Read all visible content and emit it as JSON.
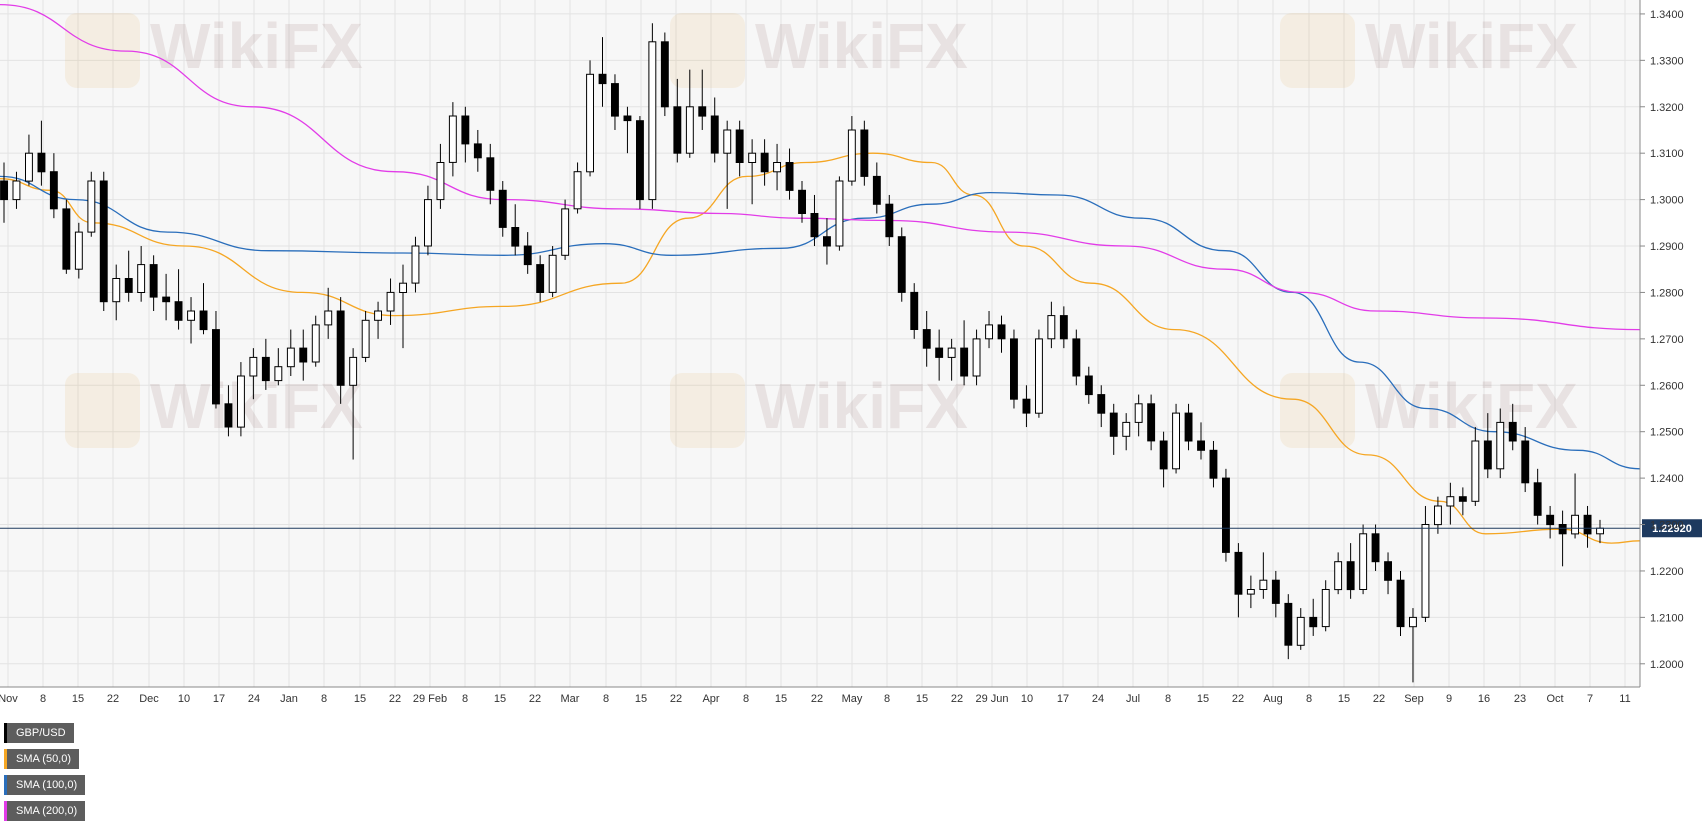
{
  "chart_data": {
    "type": "candlestick",
    "symbol": "GBP/USD",
    "ylim": [
      1.195,
      1.343
    ],
    "y_ticks": [
      "1.3400",
      "1.3300",
      "1.3200",
      "1.3100",
      "1.3000",
      "1.2900",
      "1.2800",
      "1.2700",
      "1.2600",
      "1.2500",
      "1.2400",
      "1.2300",
      "1.2200",
      "1.2100",
      "1.2000"
    ],
    "x_ticks": [
      "Nov",
      "8",
      "15",
      "22",
      "Dec",
      "10",
      "17",
      "24",
      "Jan",
      "8",
      "15",
      "22",
      "29 Feb",
      "8",
      "15",
      "22",
      "Mar",
      "8",
      "15",
      "22",
      "Apr",
      "8",
      "15",
      "22",
      "May",
      "8",
      "15",
      "22",
      "29 Jun",
      "10",
      "17",
      "24",
      "Jul",
      "8",
      "15",
      "22",
      "Aug",
      "8",
      "15",
      "22",
      "Sep",
      "9",
      "16",
      "23",
      "Oct",
      "7",
      "11"
    ],
    "last_price": "1.22920",
    "last_price_value": 1.2292,
    "grid": true,
    "legend_position": "top-left",
    "sma_series": [
      {
        "name": "SMA (50,0)",
        "color": "#f5a623",
        "anchors": [
          [
            1.3045,
            0
          ],
          [
            1.302,
            30
          ],
          [
            1.295,
            55
          ],
          [
            1.29,
            110
          ],
          [
            1.28,
            180
          ],
          [
            1.275,
            235
          ],
          [
            1.277,
            300
          ],
          [
            1.282,
            370
          ],
          [
            1.296,
            410
          ],
          [
            1.305,
            445
          ],
          [
            1.308,
            480
          ],
          [
            1.31,
            520
          ],
          [
            1.308,
            555
          ],
          [
            1.301,
            580
          ],
          [
            1.29,
            610
          ],
          [
            1.282,
            650
          ],
          [
            1.272,
            700
          ],
          [
            1.257,
            770
          ],
          [
            1.245,
            815
          ],
          [
            1.235,
            858
          ],
          [
            1.228,
            885
          ],
          [
            1.229,
            930
          ],
          [
            1.226,
            960
          ],
          [
            1.2265,
            977
          ]
        ]
      },
      {
        "name": "SMA (100,0)",
        "color": "#2a6ebb",
        "anchors": [
          [
            1.305,
            0
          ],
          [
            1.3,
            45
          ],
          [
            1.293,
            100
          ],
          [
            1.289,
            160
          ],
          [
            1.2885,
            240
          ],
          [
            1.288,
            300
          ],
          [
            1.2905,
            360
          ],
          [
            1.288,
            400
          ],
          [
            1.2895,
            465
          ],
          [
            1.296,
            515
          ],
          [
            1.299,
            555
          ],
          [
            1.3015,
            590
          ],
          [
            1.301,
            630
          ],
          [
            1.296,
            680
          ],
          [
            1.289,
            730
          ],
          [
            1.28,
            770
          ],
          [
            1.265,
            810
          ],
          [
            1.255,
            850
          ],
          [
            1.25,
            890
          ],
          [
            1.246,
            940
          ],
          [
            1.242,
            977
          ]
        ]
      },
      {
        "name": "SMA (200,0)",
        "color": "#e23ce8",
        "anchors": [
          [
            1.342,
            0
          ],
          [
            1.332,
            75
          ],
          [
            1.32,
            150
          ],
          [
            1.306,
            235
          ],
          [
            1.3,
            300
          ],
          [
            1.298,
            370
          ],
          [
            1.297,
            430
          ],
          [
            1.296,
            475
          ],
          [
            1.2955,
            530
          ],
          [
            1.293,
            600
          ],
          [
            1.29,
            670
          ],
          [
            1.285,
            730
          ],
          [
            1.28,
            775
          ],
          [
            1.276,
            820
          ],
          [
            1.2745,
            885
          ],
          [
            1.272,
            977
          ]
        ]
      }
    ],
    "ohlc": [
      [
        1.304,
        1.308,
        1.295,
        1.3
      ],
      [
        1.3,
        1.306,
        1.298,
        1.304
      ],
      [
        1.304,
        1.314,
        1.303,
        1.31
      ],
      [
        1.31,
        1.317,
        1.303,
        1.306
      ],
      [
        1.306,
        1.31,
        1.296,
        1.298
      ],
      [
        1.298,
        1.3,
        1.284,
        1.285
      ],
      [
        1.285,
        1.295,
        1.283,
        1.293
      ],
      [
        1.293,
        1.306,
        1.292,
        1.304
      ],
      [
        1.304,
        1.306,
        1.276,
        1.278
      ],
      [
        1.278,
        1.286,
        1.274,
        1.283
      ],
      [
        1.283,
        1.289,
        1.278,
        1.28
      ],
      [
        1.28,
        1.29,
        1.278,
        1.286
      ],
      [
        1.286,
        1.288,
        1.276,
        1.279
      ],
      [
        1.279,
        1.284,
        1.274,
        1.278
      ],
      [
        1.278,
        1.285,
        1.272,
        1.274
      ],
      [
        1.274,
        1.279,
        1.269,
        1.276
      ],
      [
        1.276,
        1.282,
        1.271,
        1.272
      ],
      [
        1.272,
        1.276,
        1.255,
        1.256
      ],
      [
        1.256,
        1.26,
        1.249,
        1.251
      ],
      [
        1.251,
        1.265,
        1.249,
        1.262
      ],
      [
        1.262,
        1.268,
        1.257,
        1.266
      ],
      [
        1.266,
        1.27,
        1.259,
        1.261
      ],
      [
        1.261,
        1.268,
        1.26,
        1.264
      ],
      [
        1.264,
        1.272,
        1.262,
        1.268
      ],
      [
        1.268,
        1.272,
        1.261,
        1.265
      ],
      [
        1.265,
        1.275,
        1.264,
        1.273
      ],
      [
        1.273,
        1.281,
        1.27,
        1.276
      ],
      [
        1.276,
        1.279,
        1.256,
        1.26
      ],
      [
        1.26,
        1.268,
        1.244,
        1.266
      ],
      [
        1.266,
        1.276,
        1.265,
        1.274
      ],
      [
        1.274,
        1.278,
        1.27,
        1.276
      ],
      [
        1.276,
        1.283,
        1.273,
        1.28
      ],
      [
        1.28,
        1.286,
        1.268,
        1.282
      ],
      [
        1.282,
        1.292,
        1.28,
        1.29
      ],
      [
        1.29,
        1.303,
        1.288,
        1.3
      ],
      [
        1.3,
        1.312,
        1.298,
        1.308
      ],
      [
        1.308,
        1.321,
        1.305,
        1.318
      ],
      [
        1.318,
        1.32,
        1.308,
        1.312
      ],
      [
        1.312,
        1.315,
        1.306,
        1.309
      ],
      [
        1.309,
        1.312,
        1.299,
        1.302
      ],
      [
        1.302,
        1.304,
        1.292,
        1.294
      ],
      [
        1.294,
        1.299,
        1.288,
        1.29
      ],
      [
        1.29,
        1.293,
        1.284,
        1.286
      ],
      [
        1.286,
        1.288,
        1.278,
        1.28
      ],
      [
        1.28,
        1.29,
        1.279,
        1.288
      ],
      [
        1.288,
        1.3,
        1.287,
        1.298
      ],
      [
        1.298,
        1.308,
        1.297,
        1.306
      ],
      [
        1.306,
        1.33,
        1.305,
        1.327
      ],
      [
        1.327,
        1.335,
        1.32,
        1.325
      ],
      [
        1.325,
        1.327,
        1.315,
        1.318
      ],
      [
        1.318,
        1.32,
        1.31,
        1.317
      ],
      [
        1.317,
        1.318,
        1.298,
        1.3
      ],
      [
        1.3,
        1.338,
        1.298,
        1.334
      ],
      [
        1.334,
        1.336,
        1.318,
        1.32
      ],
      [
        1.32,
        1.326,
        1.308,
        1.31
      ],
      [
        1.31,
        1.328,
        1.309,
        1.32
      ],
      [
        1.32,
        1.328,
        1.315,
        1.318
      ],
      [
        1.318,
        1.322,
        1.308,
        1.31
      ],
      [
        1.31,
        1.317,
        1.298,
        1.315
      ],
      [
        1.315,
        1.317,
        1.305,
        1.308
      ],
      [
        1.308,
        1.313,
        1.299,
        1.31
      ],
      [
        1.31,
        1.313,
        1.303,
        1.306
      ],
      [
        1.306,
        1.312,
        1.302,
        1.308
      ],
      [
        1.308,
        1.311,
        1.3,
        1.302
      ],
      [
        1.302,
        1.304,
        1.295,
        1.297
      ],
      [
        1.297,
        1.301,
        1.29,
        1.292
      ],
      [
        1.292,
        1.296,
        1.286,
        1.29
      ],
      [
        1.29,
        1.305,
        1.289,
        1.304
      ],
      [
        1.304,
        1.318,
        1.303,
        1.315
      ],
      [
        1.315,
        1.317,
        1.303,
        1.305
      ],
      [
        1.305,
        1.308,
        1.297,
        1.299
      ],
      [
        1.299,
        1.301,
        1.29,
        1.292
      ],
      [
        1.292,
        1.294,
        1.278,
        1.28
      ],
      [
        1.28,
        1.282,
        1.27,
        1.272
      ],
      [
        1.272,
        1.276,
        1.264,
        1.268
      ],
      [
        1.268,
        1.272,
        1.261,
        1.266
      ],
      [
        1.266,
        1.27,
        1.261,
        1.268
      ],
      [
        1.268,
        1.274,
        1.26,
        1.262
      ],
      [
        1.262,
        1.272,
        1.26,
        1.27
      ],
      [
        1.27,
        1.276,
        1.268,
        1.273
      ],
      [
        1.273,
        1.275,
        1.267,
        1.27
      ],
      [
        1.27,
        1.272,
        1.255,
        1.257
      ],
      [
        1.257,
        1.26,
        1.251,
        1.254
      ],
      [
        1.254,
        1.272,
        1.253,
        1.27
      ],
      [
        1.27,
        1.278,
        1.268,
        1.275
      ],
      [
        1.275,
        1.277,
        1.268,
        1.27
      ],
      [
        1.27,
        1.272,
        1.26,
        1.262
      ],
      [
        1.262,
        1.264,
        1.256,
        1.258
      ],
      [
        1.258,
        1.26,
        1.251,
        1.254
      ],
      [
        1.254,
        1.256,
        1.245,
        1.249
      ],
      [
        1.249,
        1.254,
        1.246,
        1.252
      ],
      [
        1.252,
        1.258,
        1.249,
        1.256
      ],
      [
        1.256,
        1.258,
        1.246,
        1.248
      ],
      [
        1.248,
        1.25,
        1.238,
        1.242
      ],
      [
        1.242,
        1.256,
        1.241,
        1.254
      ],
      [
        1.254,
        1.256,
        1.246,
        1.248
      ],
      [
        1.248,
        1.252,
        1.244,
        1.246
      ],
      [
        1.246,
        1.248,
        1.238,
        1.24
      ],
      [
        1.24,
        1.242,
        1.222,
        1.224
      ],
      [
        1.224,
        1.226,
        1.21,
        1.215
      ],
      [
        1.215,
        1.219,
        1.212,
        1.216
      ],
      [
        1.216,
        1.224,
        1.214,
        1.218
      ],
      [
        1.218,
        1.22,
        1.21,
        1.213
      ],
      [
        1.213,
        1.215,
        1.201,
        1.204
      ],
      [
        1.204,
        1.212,
        1.203,
        1.21
      ],
      [
        1.21,
        1.214,
        1.206,
        1.208
      ],
      [
        1.208,
        1.218,
        1.207,
        1.216
      ],
      [
        1.216,
        1.224,
        1.215,
        1.222
      ],
      [
        1.222,
        1.226,
        1.214,
        1.216
      ],
      [
        1.216,
        1.23,
        1.215,
        1.228
      ],
      [
        1.228,
        1.23,
        1.22,
        1.222
      ],
      [
        1.222,
        1.224,
        1.215,
        1.218
      ],
      [
        1.218,
        1.22,
        1.206,
        1.208
      ],
      [
        1.208,
        1.212,
        1.196,
        1.21
      ],
      [
        1.21,
        1.234,
        1.209,
        1.23
      ],
      [
        1.23,
        1.236,
        1.228,
        1.234
      ],
      [
        1.234,
        1.239,
        1.23,
        1.236
      ],
      [
        1.236,
        1.238,
        1.232,
        1.235
      ],
      [
        1.235,
        1.251,
        1.234,
        1.248
      ],
      [
        1.248,
        1.254,
        1.24,
        1.242
      ],
      [
        1.242,
        1.255,
        1.24,
        1.252
      ],
      [
        1.252,
        1.256,
        1.246,
        1.248
      ],
      [
        1.248,
        1.251,
        1.237,
        1.239
      ],
      [
        1.239,
        1.242,
        1.23,
        1.232
      ],
      [
        1.232,
        1.234,
        1.227,
        1.23
      ],
      [
        1.23,
        1.233,
        1.221,
        1.228
      ],
      [
        1.228,
        1.241,
        1.227,
        1.232
      ],
      [
        1.232,
        1.234,
        1.225,
        1.228
      ],
      [
        1.228,
        1.231,
        1.226,
        1.2292
      ]
    ]
  },
  "legend": [
    {
      "label": "GBP/USD",
      "color": "#000000"
    },
    {
      "label": "SMA (50,0)",
      "color": "#f5a623"
    },
    {
      "label": "SMA (100,0)",
      "color": "#2a6ebb"
    },
    {
      "label": "SMA (200,0)",
      "color": "#e23ce8"
    }
  ],
  "watermark": "WikiFX",
  "colors": {
    "background": "#f7f7f7",
    "grid": "#e3e3e3",
    "price_line": "#1e3a5f",
    "bull": "#ffffff",
    "bear": "#000000"
  }
}
